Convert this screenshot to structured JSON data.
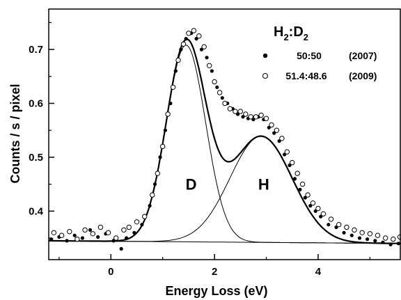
{
  "chart_data": {
    "type": "scatter",
    "title": "",
    "xlabel": "Energy Loss (eV)",
    "ylabel": "Counts / s / pixel",
    "xlim": [
      -1.2,
      5.6
    ],
    "ylim": [
      0.31,
      0.775
    ],
    "x_ticks": [
      0,
      2,
      4
    ],
    "x_tick_labels": [
      "0",
      "2",
      "4"
    ],
    "y_ticks": [
      0.4,
      0.5,
      0.6,
      0.7
    ],
    "y_tick_labels": [
      "0.4",
      "0.5",
      "0.6",
      "0.7"
    ],
    "grid": false,
    "legend": {
      "position": "top-right",
      "title_main": "H",
      "title_sub1": "2",
      "title_sep": ":D",
      "title_sub2": "2",
      "entries": [
        {
          "marker": "filled-circle",
          "ratio": "50:50",
          "year": "(2007)"
        },
        {
          "marker": "open-circle",
          "ratio": "51.4:48.6",
          "year": "(2009)"
        }
      ]
    },
    "annotations": [
      {
        "text": "D",
        "x": 1.55,
        "y": 0.45
      },
      {
        "text": "H",
        "x": 2.95,
        "y": 0.45
      }
    ],
    "baseline": {
      "x": [
        -1.2,
        5.6
      ],
      "y": [
        0.345,
        0.34
      ]
    },
    "components": [
      {
        "name": "D",
        "center": 1.45,
        "amplitude": 0.365,
        "sigma": 0.38
      },
      {
        "name": "H",
        "center": 2.9,
        "amplitude": 0.197,
        "sigma": 0.6
      }
    ],
    "series": [
      {
        "name": "50:50 (2007)",
        "marker": "filled",
        "x": [
          -1.15,
          -1.0,
          -0.85,
          -0.7,
          -0.55,
          -0.4,
          -0.25,
          -0.1,
          0.05,
          0.2,
          0.3,
          0.45,
          0.6,
          0.75,
          0.85,
          0.95,
          1.05,
          1.15,
          1.25,
          1.35,
          1.45,
          1.55,
          1.65,
          1.75,
          1.85,
          1.95,
          2.05,
          2.15,
          2.25,
          2.35,
          2.45,
          2.55,
          2.65,
          2.75,
          2.85,
          2.95,
          3.05,
          3.15,
          3.25,
          3.35,
          3.45,
          3.55,
          3.65,
          3.75,
          3.85,
          3.95,
          4.05,
          4.2,
          4.35,
          4.5,
          4.65,
          4.8,
          4.95,
          5.1,
          5.25,
          5.4,
          5.55
        ],
        "y": [
          0.348,
          0.352,
          0.345,
          0.355,
          0.35,
          0.365,
          0.352,
          0.358,
          0.345,
          0.33,
          0.35,
          0.36,
          0.375,
          0.41,
          0.45,
          0.5,
          0.55,
          0.6,
          0.66,
          0.7,
          0.72,
          0.73,
          0.72,
          0.7,
          0.685,
          0.66,
          0.63,
          0.61,
          0.6,
          0.59,
          0.58,
          0.575,
          0.572,
          0.57,
          0.575,
          0.57,
          0.555,
          0.545,
          0.53,
          0.505,
          0.485,
          0.46,
          0.44,
          0.425,
          0.41,
          0.4,
          0.39,
          0.375,
          0.37,
          0.36,
          0.355,
          0.35,
          0.348,
          0.345,
          0.342,
          0.338,
          0.34
        ]
      },
      {
        "name": "51.4:48.6 (2009)",
        "marker": "open",
        "x": [
          -1.1,
          -0.95,
          -0.8,
          -0.65,
          -0.5,
          -0.35,
          -0.2,
          -0.05,
          0.1,
          0.25,
          0.35,
          0.5,
          0.65,
          0.8,
          0.9,
          1.0,
          1.1,
          1.2,
          1.3,
          1.4,
          1.5,
          1.6,
          1.7,
          1.8,
          1.9,
          2.0,
          2.1,
          2.2,
          2.3,
          2.4,
          2.5,
          2.6,
          2.7,
          2.8,
          2.9,
          3.0,
          3.1,
          3.2,
          3.3,
          3.4,
          3.5,
          3.6,
          3.7,
          3.8,
          3.9,
          4.0,
          4.1,
          4.25,
          4.4,
          4.55,
          4.7,
          4.85,
          5.0,
          5.15,
          5.3,
          5.45,
          5.58
        ],
        "y": [
          0.36,
          0.355,
          0.362,
          0.348,
          0.365,
          0.358,
          0.37,
          0.36,
          0.35,
          0.365,
          0.37,
          0.38,
          0.39,
          0.43,
          0.47,
          0.52,
          0.58,
          0.63,
          0.68,
          0.71,
          0.73,
          0.735,
          0.725,
          0.705,
          0.67,
          0.64,
          0.62,
          0.6,
          0.59,
          0.585,
          0.585,
          0.58,
          0.575,
          0.575,
          0.578,
          0.572,
          0.56,
          0.55,
          0.535,
          0.51,
          0.49,
          0.47,
          0.45,
          0.43,
          0.415,
          0.405,
          0.395,
          0.385,
          0.375,
          0.37,
          0.365,
          0.36,
          0.358,
          0.355,
          0.35,
          0.348,
          0.352
        ]
      }
    ]
  }
}
